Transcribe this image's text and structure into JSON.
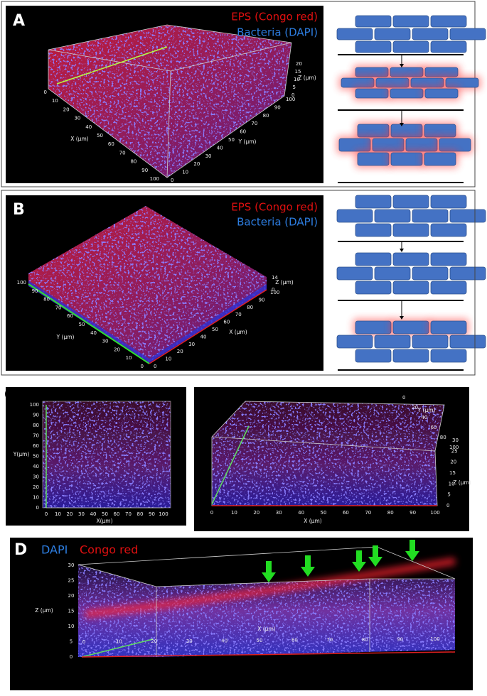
{
  "panels": [
    {
      "label": "A",
      "legend": [
        "EPS (Congo red)",
        "Bacteria (DAPI)"
      ],
      "axes": [
        {
          "label": "X (µm)",
          "ticks": [
            0,
            10,
            20,
            30,
            40,
            50,
            60,
            70,
            80,
            90,
            100
          ]
        },
        {
          "label": "Y (µm)",
          "ticks": [
            0,
            10,
            20,
            30,
            40,
            50,
            60,
            70,
            80,
            90,
            100
          ]
        },
        {
          "label": "Z (µm)",
          "ticks": [
            0,
            5,
            10,
            15,
            20
          ]
        }
      ]
    },
    {
      "label": "B",
      "legend": [
        "EPS (Congo red)",
        "Bacteria (DAPI)"
      ],
      "axes": [
        {
          "label": "Y (µm)",
          "ticks": [
            100,
            90,
            80,
            70,
            60,
            50,
            40,
            30,
            20,
            10,
            0
          ]
        },
        {
          "label": "X (µm)",
          "ticks": [
            0,
            10,
            20,
            30,
            40,
            50,
            60,
            70,
            80,
            90,
            100
          ]
        },
        {
          "label": "Z (µm)",
          "ticks": [
            0,
            14
          ]
        }
      ]
    },
    {
      "label": "C",
      "legend": [],
      "axes": [
        {
          "label": "X(µm)",
          "ticks": [
            0,
            10,
            20,
            30,
            40,
            50,
            60,
            70,
            80,
            90,
            100
          ]
        },
        {
          "label": "Y(µm)",
          "ticks": [
            0,
            10,
            20,
            30,
            40,
            50,
            60,
            70,
            80,
            90,
            100
          ]
        },
        {
          "label": "X (µm)",
          "ticks": [
            0,
            10,
            20,
            30,
            40,
            50,
            60,
            70,
            80,
            90,
            100
          ]
        },
        {
          "label": "Z (µm)",
          "ticks": [
            0,
            5,
            10,
            15,
            20,
            25,
            30
          ]
        },
        {
          "label": "Y (µm)",
          "ticks": [
            0,
            20,
            40,
            60,
            80,
            100
          ]
        }
      ]
    },
    {
      "label": "D",
      "legend": [
        "DAPI",
        "Congo red"
      ],
      "axes": [
        {
          "label": "Z (µm)",
          "ticks": [
            0,
            5,
            10,
            15,
            20,
            25,
            30
          ]
        },
        {
          "label": "X (µm)",
          "ticks": [
            0,
            10,
            20,
            30,
            40,
            50,
            60,
            70,
            80,
            90,
            100
          ]
        }
      ]
    }
  ]
}
